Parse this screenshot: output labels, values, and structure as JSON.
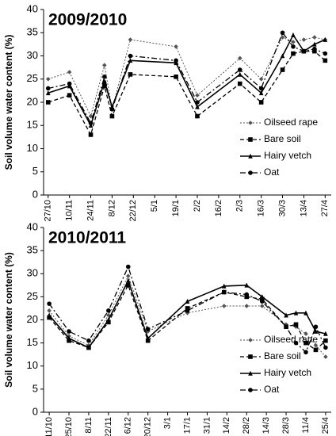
{
  "chart_data": [
    {
      "type": "line",
      "title": "2009/2010",
      "y_label": "Soil volume water content (%)",
      "x": [
        0,
        14,
        28,
        37,
        42,
        54,
        84,
        98,
        126,
        140,
        154,
        161,
        168,
        175,
        182
      ],
      "xlim": [
        -3,
        186
      ],
      "xticks": [
        {
          "value": 0,
          "label": "27/10"
        },
        {
          "value": 14,
          "label": "10/11"
        },
        {
          "value": 28,
          "label": "24/11"
        },
        {
          "value": 42,
          "label": "8/12"
        },
        {
          "value": 56,
          "label": "22/12"
        },
        {
          "value": 70,
          "label": "5/1"
        },
        {
          "value": 84,
          "label": "19/1"
        },
        {
          "value": 98,
          "label": "2/2"
        },
        {
          "value": 112,
          "label": "16/2"
        },
        {
          "value": 126,
          "label": "2/3"
        },
        {
          "value": 140,
          "label": "16/3"
        },
        {
          "value": 154,
          "label": "30/3"
        },
        {
          "value": 168,
          "label": "13/4"
        },
        {
          "value": 182,
          "label": "27/4"
        }
      ],
      "ylim": [
        0,
        40
      ],
      "yticks": [
        0,
        5,
        10,
        15,
        20,
        25,
        30,
        35,
        40
      ],
      "legend": "lower right",
      "series": [
        {
          "name": "Oilseed rape",
          "color": "#555555",
          "values": [
            25,
            26.5,
            17,
            28,
            18.5,
            33.5,
            32,
            21.5,
            29.5,
            25,
            34,
            33,
            33.5,
            34,
            33.5
          ]
        },
        {
          "name": "Bare soil",
          "color": "#000000",
          "values": [
            20,
            21.5,
            13,
            23.5,
            17,
            26,
            25.5,
            17,
            24,
            20,
            27,
            30.5,
            31,
            31,
            29
          ]
        },
        {
          "name": "Hairy vetch",
          "color": "#000000",
          "values": [
            22,
            23.5,
            15,
            24.5,
            19,
            29,
            28.5,
            19,
            26,
            22,
            30,
            34.5,
            31,
            32.5,
            33.5
          ]
        },
        {
          "name": "Oat",
          "color": "#000000",
          "values": [
            23,
            24,
            15.5,
            25.5,
            18.5,
            30,
            29,
            20,
            27,
            23,
            35,
            32,
            31,
            31.5,
            30.5
          ]
        }
      ]
    },
    {
      "type": "line",
      "title": "2010/2011",
      "y_label": "Soil volume water content (%)",
      "x": [
        0,
        14,
        28,
        42,
        56,
        70,
        98,
        124,
        140,
        151,
        168,
        175,
        182,
        189,
        196
      ],
      "xlim": [
        -4,
        200
      ],
      "xticks": [
        {
          "value": 0,
          "label": "11/10"
        },
        {
          "value": 14,
          "label": "25/10"
        },
        {
          "value": 28,
          "label": "8/11"
        },
        {
          "value": 42,
          "label": "22/11"
        },
        {
          "value": 56,
          "label": "6/12"
        },
        {
          "value": 70,
          "label": "20/12"
        },
        {
          "value": 84,
          "label": "3/1"
        },
        {
          "value": 98,
          "label": "17/1"
        },
        {
          "value": 112,
          "label": "31/1"
        },
        {
          "value": 126,
          "label": "14/2"
        },
        {
          "value": 140,
          "label": "28/2"
        },
        {
          "value": 154,
          "label": "14/3"
        },
        {
          "value": 168,
          "label": "28/3"
        },
        {
          "value": 182,
          "label": "11/4"
        },
        {
          "value": 196,
          "label": "25/4"
        }
      ],
      "ylim": [
        0,
        40
      ],
      "yticks": [
        0,
        5,
        10,
        15,
        20,
        25,
        30,
        35,
        40
      ],
      "legend": "lower right",
      "series": [
        {
          "name": "Oilseed rape",
          "color": "#555555",
          "values": [
            22,
            16.5,
            14.5,
            21,
            29.5,
            17.5,
            21.5,
            23,
            23,
            23,
            19,
            18.5,
            17,
            14.5,
            12
          ]
        },
        {
          "name": "Bare soil",
          "color": "#000000",
          "values": [
            20.5,
            15.5,
            14,
            19.5,
            27.5,
            15.5,
            22.5,
            26,
            25,
            24.5,
            18.5,
            19,
            15,
            13.5,
            15.5
          ]
        },
        {
          "name": "Hairy vetch",
          "color": "#000000",
          "values": [
            21,
            16,
            14,
            20,
            28.5,
            16,
            24,
            27.3,
            27.5,
            25,
            21,
            21.5,
            21.5,
            17.5,
            17
          ]
        },
        {
          "name": "Oat",
          "color": "#000000",
          "values": [
            23.5,
            17.5,
            15.5,
            22,
            31.5,
            18,
            22,
            26,
            25.5,
            24,
            18.5,
            15,
            13,
            18.5,
            14
          ]
        }
      ]
    }
  ]
}
